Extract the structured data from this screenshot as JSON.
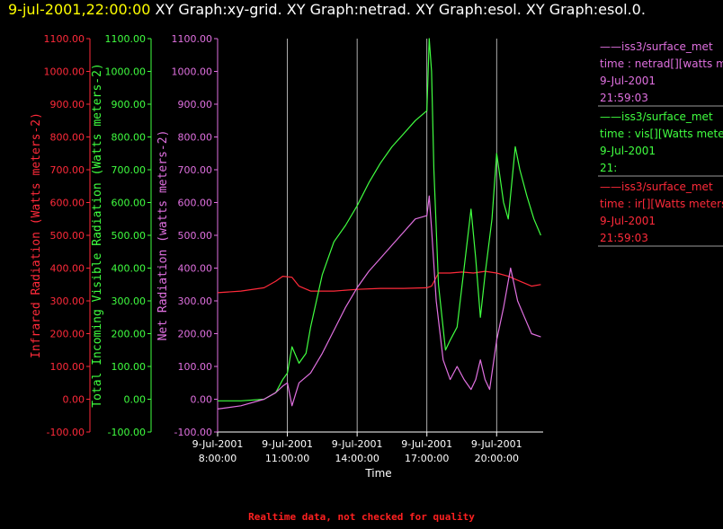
{
  "title": {
    "timestamp": "9-jul-2001,22:00:00",
    "graphs": "XY Graph:xy-grid.  XY Graph:netrad.  XY Graph:esol.  XY Graph:esol.0."
  },
  "footer": "Realtime data, not checked for quality",
  "colors": {
    "ir": "#ff2a3a",
    "vis": "#40ff40",
    "net": "#e070e0",
    "grid": "#ffffff",
    "title_ts": "#ffff00"
  },
  "chart_data": {
    "type": "line",
    "xlabel": "Time",
    "x_ticks": [
      {
        "date": "9-Jul-2001",
        "time": "8:00:00"
      },
      {
        "date": "9-Jul-2001",
        "time": "11:00:00"
      },
      {
        "date": "9-Jul-2001",
        "time": "14:00:00"
      },
      {
        "date": "9-Jul-2001",
        "time": "17:00:00"
      },
      {
        "date": "9-Jul-2001",
        "time": "20:00:00"
      }
    ],
    "xlim_hours": [
      8.0,
      22.0
    ],
    "ylim": [
      -100,
      1100
    ],
    "y_ticks": [
      "-100.00",
      "0.00",
      "100.00",
      "200.00",
      "300.00",
      "400.00",
      "500.00",
      "600.00",
      "700.00",
      "800.00",
      "900.00",
      "1000.00",
      "1100.00"
    ],
    "axes": [
      {
        "id": "ir",
        "label": "Infrared Radiation (Watts meters-2)"
      },
      {
        "id": "vis",
        "label": "Total Incoming Visible Radiation (Watts meters-2)"
      },
      {
        "id": "net",
        "label": "Net Radiation (watts meters-2)"
      }
    ],
    "grid": "vertical",
    "legend_position": "right",
    "legend": [
      {
        "id": "net",
        "source": "iss3/surface_met",
        "field": "time : netrad[][watts met",
        "date": "9-Jul-2001",
        "time": "21:59:03"
      },
      {
        "id": "vis",
        "source": "iss3/surface_met",
        "field": "time : vis[][Watts meter",
        "date": "9-Jul-2001",
        "time": "21:"
      },
      {
        "id": "ir",
        "source": "iss3/surface_met",
        "field": "time : ir[][Watts meters",
        "date": "9-Jul-2001",
        "time": "21:59:03"
      }
    ],
    "series": [
      {
        "id": "ir",
        "x": [
          8.0,
          9.0,
          10.0,
          10.5,
          10.8,
          11.2,
          11.5,
          12.0,
          13.0,
          14.0,
          15.0,
          16.0,
          17.0,
          17.2,
          17.5,
          18.0,
          18.5,
          19.0,
          19.5,
          20.0,
          20.5,
          21.0,
          21.5,
          21.9
        ],
        "y": [
          325,
          330,
          340,
          360,
          375,
          372,
          345,
          330,
          330,
          335,
          338,
          338,
          340,
          345,
          385,
          385,
          388,
          385,
          390,
          385,
          375,
          360,
          345,
          350
        ]
      },
      {
        "id": "vis",
        "x": [
          8.0,
          9.0,
          10.0,
          10.5,
          10.8,
          11.0,
          11.2,
          11.5,
          11.8,
          12.0,
          12.5,
          13.0,
          13.5,
          14.0,
          14.5,
          15.0,
          15.5,
          16.0,
          16.5,
          17.0,
          17.1,
          17.2,
          17.3,
          17.5,
          17.8,
          18.0,
          18.3,
          18.6,
          18.9,
          19.1,
          19.3,
          19.5,
          19.8,
          20.0,
          20.3,
          20.5,
          20.8,
          21.0,
          21.3,
          21.6,
          21.9
        ],
        "y": [
          -5,
          -5,
          0,
          20,
          60,
          80,
          160,
          110,
          140,
          220,
          380,
          480,
          530,
          590,
          660,
          720,
          770,
          810,
          850,
          880,
          1100,
          1000,
          700,
          350,
          150,
          180,
          220,
          400,
          580,
          430,
          250,
          380,
          550,
          750,
          600,
          550,
          770,
          700,
          620,
          550,
          500
        ]
      },
      {
        "id": "net",
        "x": [
          8.0,
          9.0,
          10.0,
          10.5,
          10.8,
          11.0,
          11.2,
          11.5,
          12.0,
          12.5,
          13.0,
          13.5,
          14.0,
          14.5,
          15.0,
          15.5,
          16.0,
          16.5,
          17.0,
          17.1,
          17.2,
          17.4,
          17.7,
          18.0,
          18.3,
          18.6,
          18.9,
          19.1,
          19.3,
          19.5,
          19.7,
          20.0,
          20.3,
          20.6,
          20.9,
          21.2,
          21.5,
          21.9
        ],
        "y": [
          -30,
          -20,
          0,
          20,
          40,
          50,
          -20,
          50,
          80,
          140,
          210,
          280,
          340,
          390,
          430,
          470,
          510,
          550,
          560,
          620,
          520,
          300,
          120,
          60,
          100,
          60,
          30,
          60,
          120,
          60,
          30,
          180,
          280,
          400,
          300,
          250,
          200,
          190
        ]
      }
    ]
  }
}
